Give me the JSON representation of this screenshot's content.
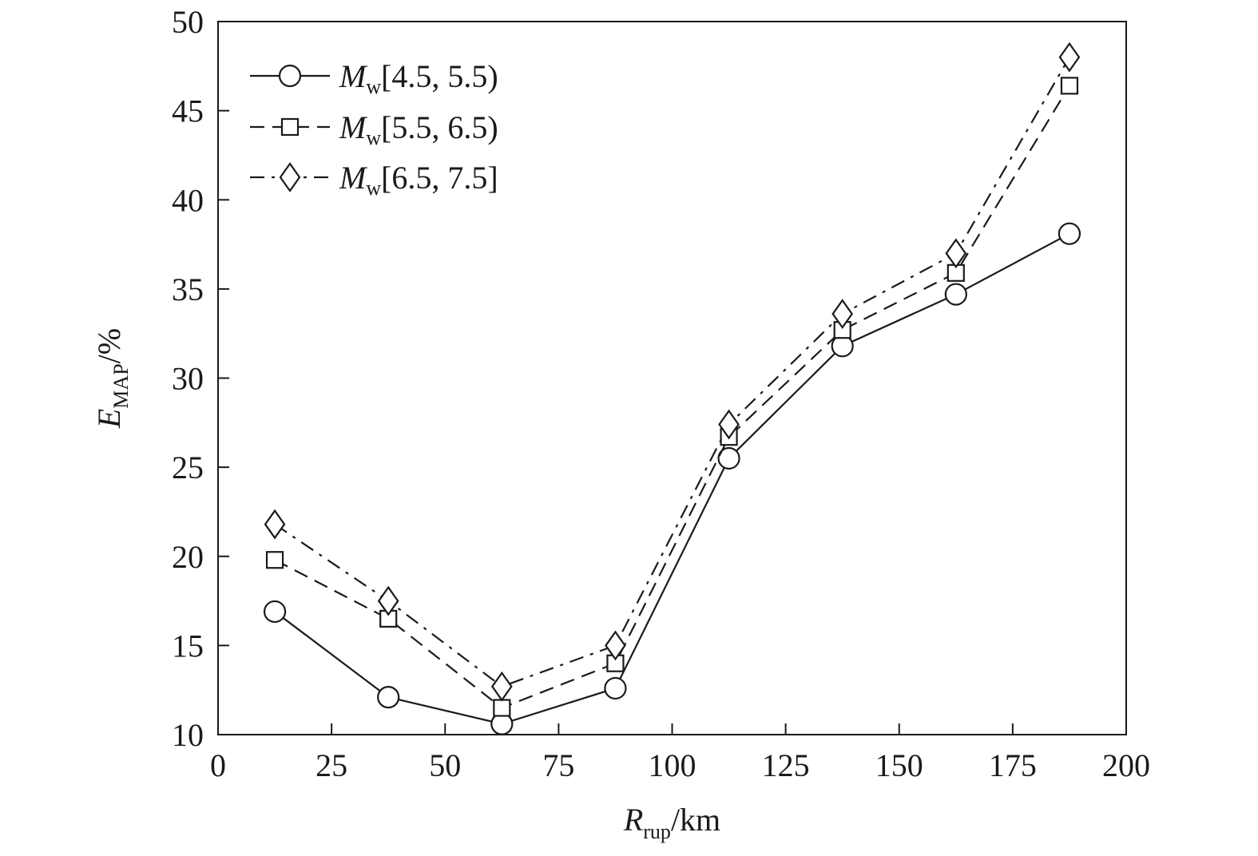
{
  "chart_data": {
    "type": "line",
    "xlabel": {
      "main": "R",
      "sub": "rup",
      "suffix": "/km"
    },
    "ylabel": {
      "main": "E",
      "sub": "MAP",
      "suffix": "/%"
    },
    "xlim": [
      0,
      200
    ],
    "ylim": [
      10,
      50
    ],
    "xticks": [
      0,
      25,
      50,
      75,
      100,
      125,
      150,
      175,
      200
    ],
    "yticks": [
      10,
      15,
      20,
      25,
      30,
      35,
      40,
      45,
      50
    ],
    "grid": false,
    "legend_position": "top-left",
    "x": [
      12.5,
      37.5,
      62.5,
      87.5,
      112.5,
      137.5,
      162.5,
      187.5
    ],
    "series": [
      {
        "name": "Mw[4.5, 5.5)",
        "name_main": "M",
        "name_sub": "w",
        "name_range": "[4.5, 5.5)",
        "marker": "circle",
        "line_style": "solid",
        "values": [
          16.9,
          12.1,
          10.6,
          12.6,
          25.5,
          31.8,
          34.7,
          38.1
        ]
      },
      {
        "name": "Mw[5.5, 6.5)",
        "name_main": "M",
        "name_sub": "w",
        "name_range": "[5.5, 6.5)",
        "marker": "square",
        "line_style": "dashed",
        "values": [
          19.8,
          16.5,
          11.5,
          14.0,
          26.7,
          32.7,
          35.9,
          46.4
        ]
      },
      {
        "name": "Mw[6.5, 7.5]",
        "name_main": "M",
        "name_sub": "w",
        "name_range": "[6.5, 7.5]",
        "marker": "diamond",
        "line_style": "dashdot",
        "values": [
          21.8,
          17.5,
          12.7,
          15.0,
          27.4,
          33.6,
          37.0,
          48.0
        ]
      }
    ],
    "colors": {
      "line": "#1a1a1a",
      "background": "#ffffff"
    }
  }
}
